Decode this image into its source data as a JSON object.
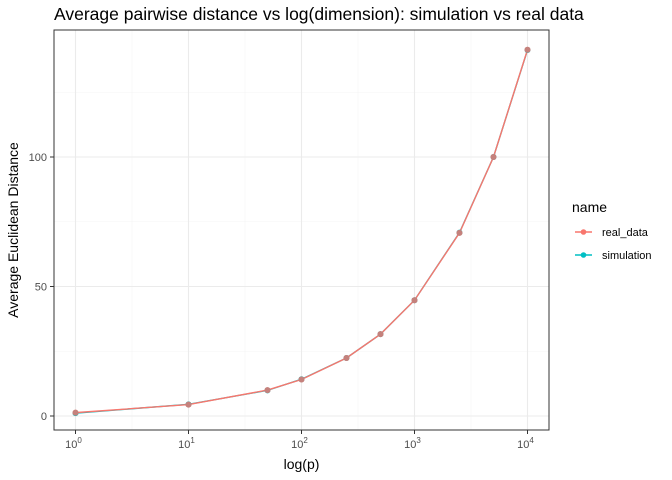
{
  "chart_data": {
    "type": "line",
    "title": "Average pairwise distance vs log(dimension): simulation vs real data",
    "xlabel": "log(p)",
    "ylabel": "Average Euclidean Distance",
    "x_scale": "log10",
    "xlim": [
      1,
      10000
    ],
    "ylim": [
      0,
      140
    ],
    "x_ticks": [
      {
        "base": "10",
        "exp": "0"
      },
      {
        "base": "10",
        "exp": "1"
      },
      {
        "base": "10",
        "exp": "2"
      },
      {
        "base": "10",
        "exp": "3"
      },
      {
        "base": "10",
        "exp": "4"
      }
    ],
    "y_ticks": [
      "0",
      "50",
      "100"
    ],
    "legend": {
      "title": "name",
      "placement": "right"
    },
    "x": [
      1,
      10,
      50,
      100,
      250,
      500,
      1000,
      2500,
      5000,
      10000
    ],
    "series": [
      {
        "name": "real_data",
        "color": "#F8766D",
        "values": [
          1.3,
          4.4,
          10.0,
          14.1,
          22.4,
          31.6,
          44.7,
          70.7,
          100.0,
          141.4
        ]
      },
      {
        "name": "simulation",
        "color": "#00BFC4",
        "values": [
          1.1,
          4.5,
          9.9,
          14.2,
          22.4,
          31.6,
          44.7,
          70.8,
          100.0,
          141.3
        ]
      }
    ],
    "grid": true,
    "panel_border": true
  }
}
